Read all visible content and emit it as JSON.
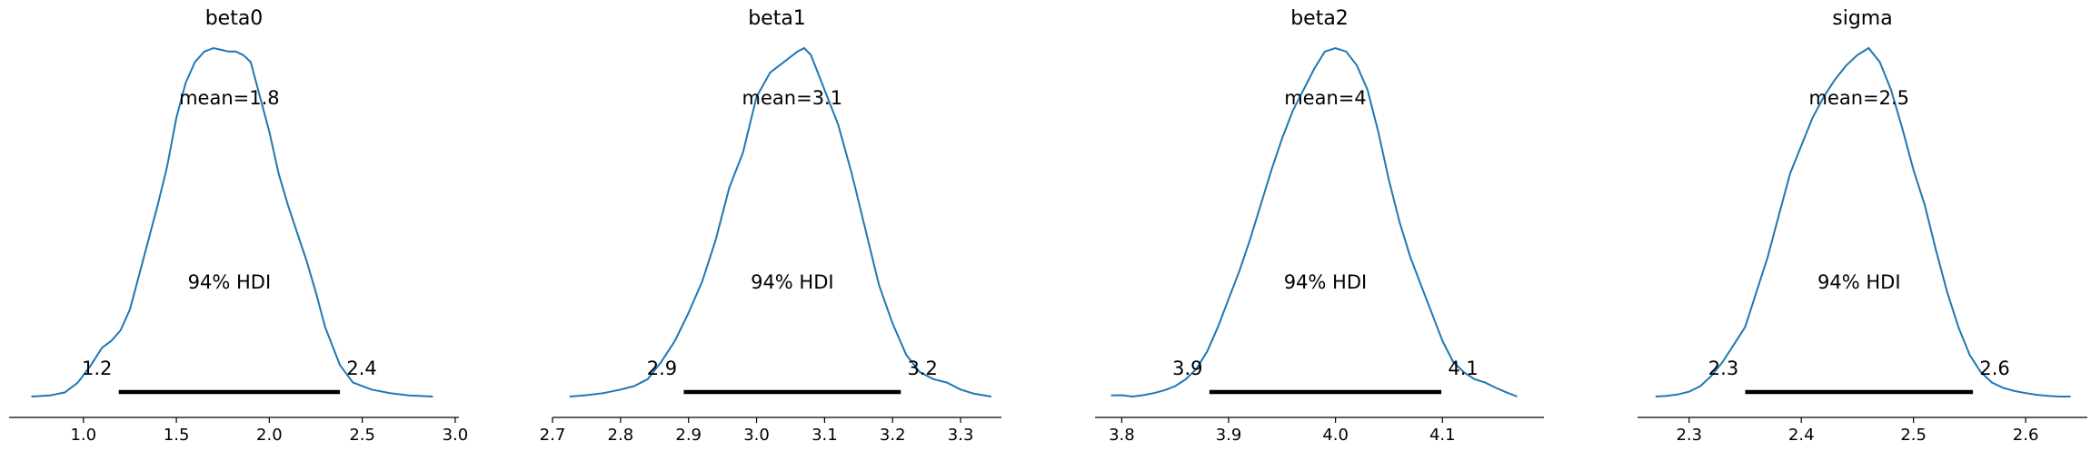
{
  "colors": {
    "density": "#1f77b4",
    "hdi_bar": "#000000",
    "axis": "#000000"
  },
  "chart_data": [
    {
      "type": "area",
      "title": "beta0",
      "mean_label": "mean=1.8",
      "hdi_label": "94% HDI",
      "hdi": [
        1.19,
        2.38
      ],
      "hdi_low_label": "1.2",
      "hdi_high_label": "2.4",
      "xlim": [
        0.6,
        3.02
      ],
      "xticks": [
        1.0,
        1.5,
        2.0,
        2.5,
        3.0
      ],
      "xtick_labels": [
        "1.0",
        "1.5",
        "2.0",
        "2.5",
        "3.0"
      ],
      "ylim": [
        0,
        1.0
      ],
      "density": {
        "x": [
          0.72,
          0.82,
          0.9,
          0.97,
          1.04,
          1.1,
          1.15,
          1.2,
          1.25,
          1.3,
          1.35,
          1.4,
          1.45,
          1.5,
          1.55,
          1.6,
          1.65,
          1.7,
          1.74,
          1.78,
          1.82,
          1.86,
          1.9,
          1.95,
          2.0,
          2.05,
          2.1,
          2.15,
          2.2,
          2.25,
          2.3,
          2.38,
          2.45,
          2.55,
          2.65,
          2.75,
          2.88
        ],
        "y": [
          0.0,
          0.003,
          0.012,
          0.04,
          0.09,
          0.14,
          0.16,
          0.19,
          0.25,
          0.35,
          0.45,
          0.55,
          0.66,
          0.8,
          0.9,
          0.96,
          0.99,
          1.0,
          0.995,
          0.99,
          0.99,
          0.98,
          0.96,
          0.86,
          0.76,
          0.64,
          0.55,
          0.47,
          0.39,
          0.3,
          0.2,
          0.09,
          0.04,
          0.02,
          0.01,
          0.003,
          0.0
        ]
      }
    },
    {
      "type": "area",
      "title": "beta1",
      "mean_label": "mean=3.1",
      "hdi_label": "94% HDI",
      "hdi": [
        2.893,
        3.212
      ],
      "hdi_low_label": "2.9",
      "hdi_high_label": "3.2",
      "xlim": [
        2.7,
        3.36
      ],
      "xticks": [
        2.7,
        2.8,
        2.9,
        3.0,
        3.1,
        3.2,
        3.3
      ],
      "xtick_labels": [
        "2.7",
        "2.8",
        "2.9",
        "3.0",
        "3.1",
        "3.2",
        "3.3"
      ],
      "ylim": [
        0,
        1.0
      ],
      "density": {
        "x": [
          2.725,
          2.75,
          2.775,
          2.8,
          2.82,
          2.84,
          2.86,
          2.88,
          2.9,
          2.92,
          2.94,
          2.96,
          2.98,
          3.0,
          3.02,
          3.04,
          3.06,
          3.07,
          3.08,
          3.1,
          3.12,
          3.14,
          3.16,
          3.18,
          3.2,
          3.22,
          3.24,
          3.26,
          3.28,
          3.3,
          3.32,
          3.345
        ],
        "y": [
          0.0,
          0.004,
          0.01,
          0.02,
          0.03,
          0.05,
          0.1,
          0.16,
          0.24,
          0.33,
          0.45,
          0.6,
          0.7,
          0.86,
          0.93,
          0.96,
          0.99,
          1.0,
          0.98,
          0.88,
          0.78,
          0.64,
          0.48,
          0.32,
          0.21,
          0.12,
          0.07,
          0.05,
          0.04,
          0.02,
          0.008,
          0.0
        ]
      }
    },
    {
      "type": "area",
      "title": "beta2",
      "mean_label": "mean=4",
      "hdi_label": "94% HDI",
      "hdi": [
        3.882,
        4.099
      ],
      "hdi_low_label": "3.9",
      "hdi_high_label": "4.1",
      "xlim": [
        3.775,
        4.195
      ],
      "xticks": [
        3.8,
        3.9,
        4.0,
        4.1
      ],
      "xtick_labels": [
        "3.8",
        "3.9",
        "4.0",
        "4.1"
      ],
      "ylim": [
        0,
        1.0
      ],
      "density": {
        "x": [
          3.79,
          3.8,
          3.81,
          3.82,
          3.83,
          3.84,
          3.85,
          3.86,
          3.87,
          3.88,
          3.89,
          3.9,
          3.91,
          3.92,
          3.93,
          3.94,
          3.95,
          3.96,
          3.97,
          3.98,
          3.99,
          4.0,
          4.01,
          4.02,
          4.03,
          4.04,
          4.05,
          4.06,
          4.07,
          4.08,
          4.09,
          4.1,
          4.11,
          4.12,
          4.13,
          4.14,
          4.15,
          4.16,
          4.17
        ],
        "y": [
          0.003,
          0.004,
          0.0,
          0.004,
          0.01,
          0.018,
          0.03,
          0.05,
          0.08,
          0.13,
          0.2,
          0.28,
          0.36,
          0.45,
          0.55,
          0.65,
          0.74,
          0.82,
          0.88,
          0.94,
          0.99,
          1.0,
          0.99,
          0.95,
          0.88,
          0.76,
          0.62,
          0.5,
          0.4,
          0.32,
          0.24,
          0.16,
          0.1,
          0.07,
          0.05,
          0.04,
          0.025,
          0.012,
          0.0
        ]
      }
    },
    {
      "type": "area",
      "title": "sigma",
      "mean_label": "mean=2.5",
      "hdi_label": "94% HDI",
      "hdi": [
        2.35,
        2.553
      ],
      "hdi_low_label": "2.3",
      "hdi_high_label": "2.6",
      "xlim": [
        2.254,
        2.655
      ],
      "xticks": [
        2.3,
        2.4,
        2.5,
        2.6
      ],
      "xtick_labels": [
        "2.3",
        "2.4",
        "2.5",
        "2.6"
      ],
      "ylim": [
        0,
        1.0
      ],
      "density": {
        "x": [
          2.27,
          2.28,
          2.29,
          2.3,
          2.31,
          2.32,
          2.33,
          2.34,
          2.35,
          2.36,
          2.37,
          2.38,
          2.39,
          2.4,
          2.41,
          2.42,
          2.43,
          2.44,
          2.45,
          2.46,
          2.47,
          2.48,
          2.49,
          2.5,
          2.51,
          2.52,
          2.53,
          2.54,
          2.55,
          2.56,
          2.57,
          2.58,
          2.59,
          2.6,
          2.61,
          2.62,
          2.63,
          2.64
        ],
        "y": [
          0.0,
          0.002,
          0.006,
          0.014,
          0.03,
          0.06,
          0.1,
          0.15,
          0.2,
          0.3,
          0.4,
          0.52,
          0.64,
          0.72,
          0.8,
          0.86,
          0.91,
          0.95,
          0.98,
          1.0,
          0.96,
          0.88,
          0.77,
          0.65,
          0.55,
          0.42,
          0.3,
          0.2,
          0.12,
          0.07,
          0.04,
          0.025,
          0.016,
          0.01,
          0.005,
          0.002,
          0.0,
          0.0
        ]
      }
    }
  ]
}
